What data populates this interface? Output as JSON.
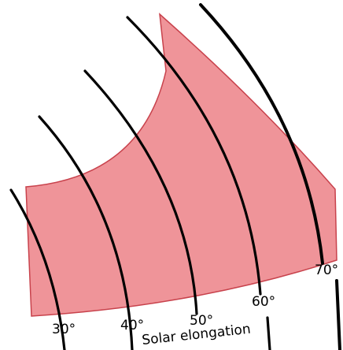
{
  "diagram": {
    "region_fill": "#e8666e",
    "region_stroke": "#c8424c",
    "line_color": "#000000",
    "axis_title": "Solar elongation",
    "elongation_arcs": [
      {
        "label": "30°",
        "value": 30
      },
      {
        "label": "40°",
        "value": 40
      },
      {
        "label": "50°",
        "value": 50
      },
      {
        "label": "60°",
        "value": 60
      },
      {
        "label": "70°",
        "value": 70
      }
    ]
  }
}
